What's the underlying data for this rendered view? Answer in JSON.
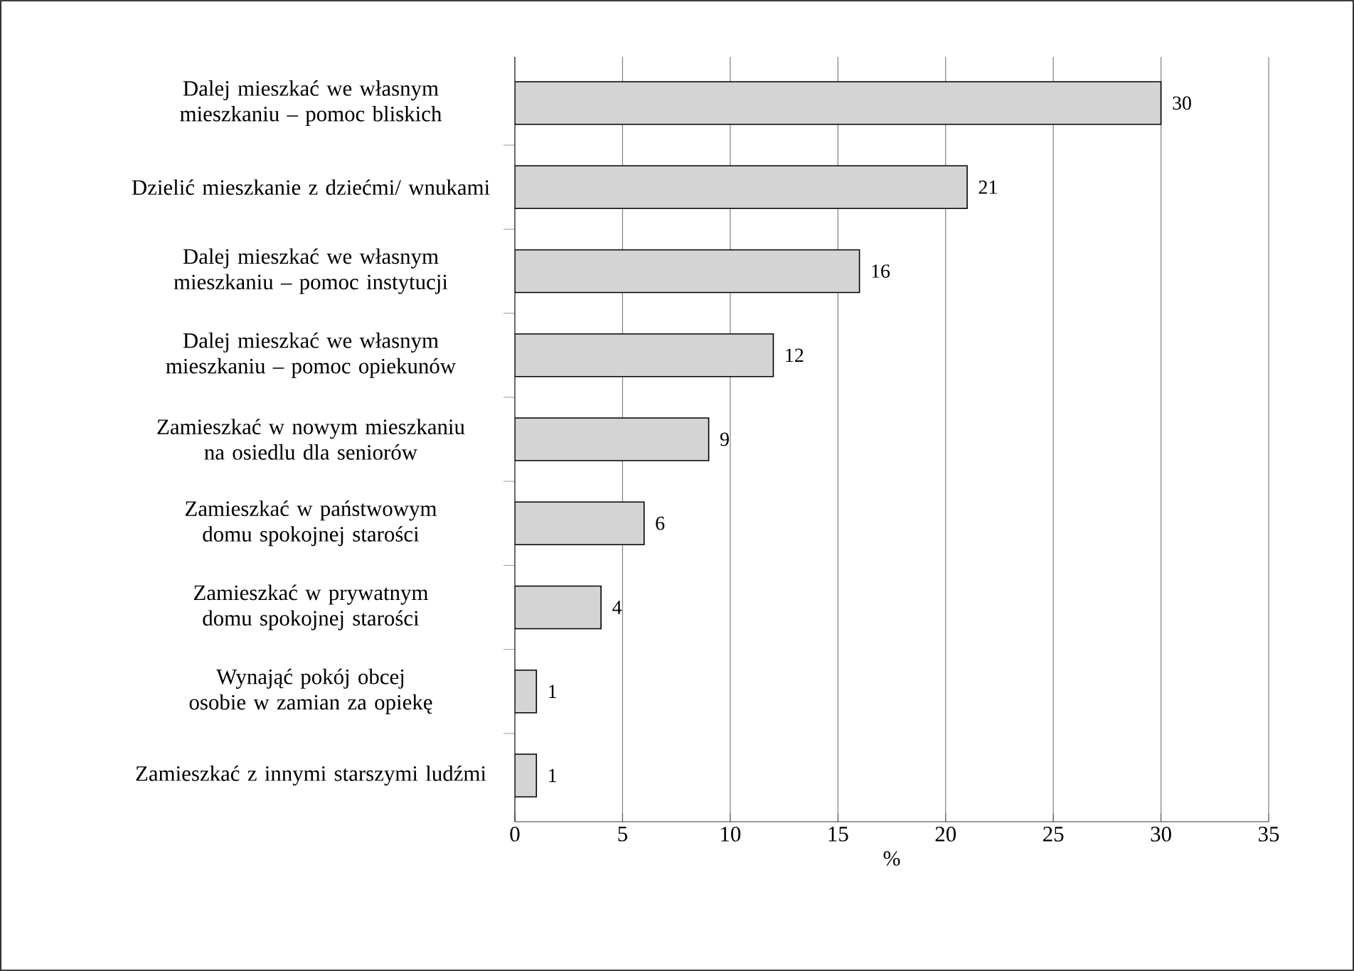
{
  "chart_data": {
    "type": "bar",
    "orientation": "horizontal",
    "xlabel": "%",
    "categories": [
      "Dalej mieszkać we własnym mieszkaniu – pomoc bliskich",
      "Dzielić mieszkanie z dziećmi/ wnukami",
      "Dalej mieszkać we własnym mieszkaniu – pomoc instytucji",
      "Dalej mieszkać we własnym mieszkaniu – pomoc opiekunów",
      "Zamieszkać w nowym mieszkaniu na osiedlu dla seniorów",
      "Zamieszkać w państwowym domu spokojnej starości",
      "Zamieszkać w prywatnym domu spokojnej starości",
      "Wynająć pokój obcej osobie w zamian za opiekę",
      "Zamieszkać z innymi starszymi ludźmi"
    ],
    "values": [
      30,
      21,
      16,
      12,
      9,
      6,
      4,
      1,
      1
    ],
    "color": "#d4d4d4",
    "xlim": [
      0,
      35
    ],
    "xticks": [
      0,
      5,
      10,
      15,
      20,
      25,
      30,
      35
    ],
    "grid": "x",
    "data_labels": true
  }
}
